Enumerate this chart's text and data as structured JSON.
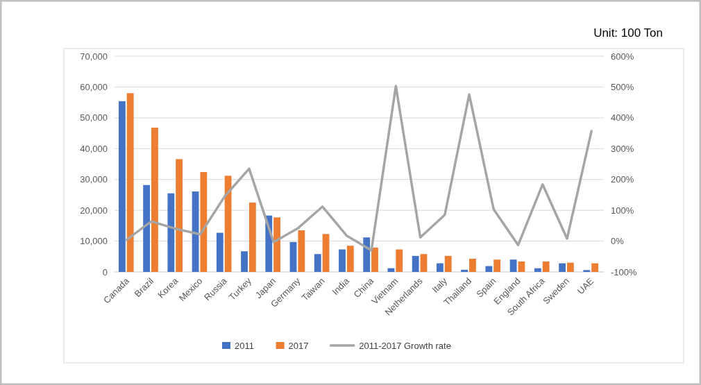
{
  "chart_data": {
    "type": "bar",
    "annotations": [
      "Unit: 100 Ton"
    ],
    "categories": [
      "Canada",
      "Brazil",
      "Korea",
      "Mexico",
      "Russia",
      "Turkey",
      "Japan",
      "Germany",
      "Taiwan",
      "India",
      "China",
      "Vietnam",
      "Netherlands",
      "Italy",
      "Thailand",
      "Spain",
      "England",
      "South Africa",
      "Sweden",
      "UAE"
    ],
    "series": [
      {
        "name": "2011",
        "color": "#4472c4",
        "values": [
          55400,
          28200,
          25500,
          26100,
          12700,
          6700,
          18300,
          9700,
          5800,
          7300,
          11200,
          1200,
          5200,
          2800,
          700,
          1900,
          4000,
          1200,
          2800,
          600
        ]
      },
      {
        "name": "2017",
        "color": "#ed7d31",
        "values": [
          58000,
          46800,
          36600,
          32400,
          31200,
          22500,
          17700,
          13500,
          12300,
          8500,
          7900,
          7300,
          5800,
          5200,
          4300,
          4000,
          3400,
          3400,
          3000,
          2800
        ]
      },
      {
        "name": "2011-2017 Growth rate",
        "type": "line",
        "axis": "y2",
        "color": "#a5a5a5",
        "values": [
          5,
          64,
          40,
          22,
          145,
          235,
          -3,
          42,
          112,
          17,
          -30,
          503,
          12,
          85,
          476,
          103,
          -13,
          184,
          8,
          357
        ]
      }
    ],
    "ylim": [
      0,
      70000
    ],
    "yticks": [
      0,
      {
        "value": 10000,
        "label": "10,000"
      },
      {
        "value": 20000,
        "label": "20,000"
      },
      {
        "value": 30000,
        "label": "30,000"
      },
      {
        "value": 40000,
        "label": "40,000"
      },
      {
        "value": 50000,
        "label": "50,000"
      },
      {
        "value": 60000,
        "label": "60,000"
      },
      {
        "value": 70000,
        "label": "70,000"
      }
    ],
    "y2lim": [
      -100,
      600
    ],
    "y2ticks": [
      {
        "value": -100,
        "label": "-100%"
      },
      {
        "value": 0,
        "label": "0%"
      },
      {
        "value": 100,
        "label": "100%"
      },
      {
        "value": 200,
        "label": "200%"
      },
      {
        "value": 300,
        "label": "300%"
      },
      {
        "value": 400,
        "label": "400%"
      },
      {
        "value": 500,
        "label": "500%"
      },
      {
        "value": 600,
        "label": "600%"
      }
    ],
    "grid": "y",
    "legend": "bottom"
  }
}
